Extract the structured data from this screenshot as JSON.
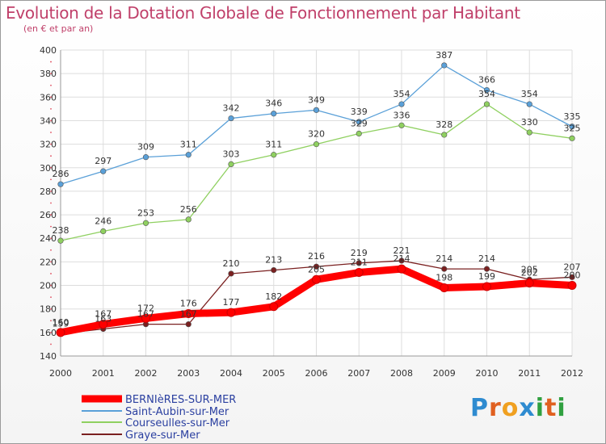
{
  "title": "Evolution de la Dotation Globale de Fonctionnement par Habitant",
  "subtitle": "(en € et par an)",
  "logo": [
    "P",
    "r",
    "o",
    "x",
    "i",
    "t",
    "i"
  ],
  "chart_data": {
    "type": "line",
    "title": "Evolution de la Dotation Globale de Fonctionnement par Habitant",
    "subtitle": "(en € et par an)",
    "xlabel": "",
    "ylabel": "",
    "x": [
      "2000",
      "2001",
      "2002",
      "2003",
      "2004",
      "2005",
      "2006",
      "2007",
      "2008",
      "2009",
      "2010",
      "2011",
      "2012"
    ],
    "ylim": [
      140,
      400
    ],
    "yticks": [
      140,
      160,
      180,
      200,
      220,
      240,
      260,
      280,
      300,
      320,
      340,
      360,
      380,
      400
    ],
    "grid": true,
    "legend_position": "bottom-left",
    "series": [
      {
        "name": "Saint-Aubin-sur-Mer",
        "color": "#5aa0d8",
        "values": [
          286,
          297,
          309,
          311,
          342,
          346,
          349,
          339,
          354,
          387,
          366,
          354,
          335
        ]
      },
      {
        "name": "Courseulles-sur-Mer",
        "color": "#8fd060",
        "values": [
          238,
          246,
          253,
          256,
          303,
          311,
          320,
          329,
          336,
          328,
          354,
          330,
          325
        ]
      },
      {
        "name": "Graye-sur-Mer",
        "color": "#7a2020",
        "values": [
          159,
          163,
          167,
          167,
          210,
          213,
          216,
          219,
          221,
          214,
          214,
          205,
          207
        ]
      },
      {
        "name": "BERNIèRES-SUR-MER",
        "color": "#ff0000",
        "values": [
          160,
          167,
          172,
          176,
          177,
          182,
          205,
          211,
          214,
          198,
          199,
          202,
          200
        ]
      }
    ],
    "legend": [
      "BERNIèRES-SUR-MER",
      "Saint-Aubin-sur-Mer",
      "Courseulles-sur-Mer",
      "Graye-sur-Mer"
    ]
  }
}
